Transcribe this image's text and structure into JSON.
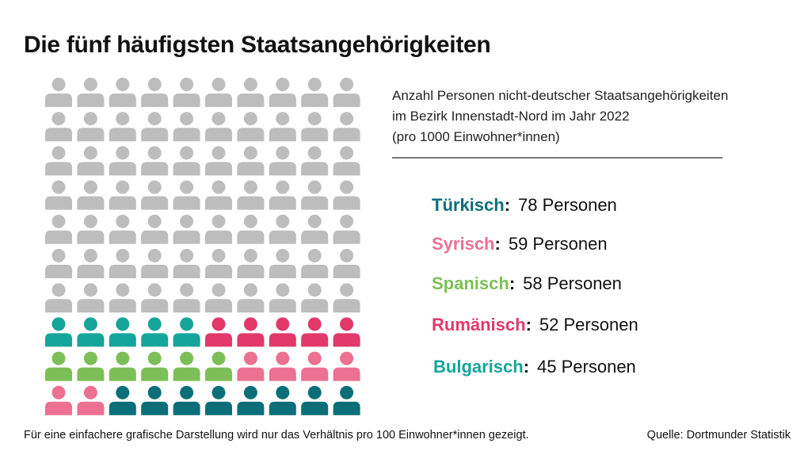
{
  "title": "Die fünf häufigsten Staatsangehörigkeiten",
  "subtitle_lines": [
    "Anzahl Personen nicht-deutscher Staatsangehörigkeiten",
    "im Bezirk Innenstadt-Nord im Jahr 2022",
    "(pro 1000 Einwohner*innen)"
  ],
  "footnote": "Für eine einfachere grafische Darstellung wird nur das Verhältnis pro 100 Einwohner*innen gezeigt.",
  "source": "Quelle: Dortmunder Statistik",
  "chart_data": {
    "type": "waffle",
    "grid": {
      "rows": 10,
      "cols": 10,
      "total": 100
    },
    "rest_color": "#bdbdbd",
    "fill_order": "from bottom-right, right to left, row by row upward",
    "categories": [
      {
        "name": "Türkisch",
        "label": "Türkisch",
        "value": 78,
        "value_text": "78 Personen",
        "icons": 8,
        "color": "#0b6e78"
      },
      {
        "name": "Syrisch",
        "label": "Syrisch",
        "value": 59,
        "value_text": "59 Personen",
        "icons": 6,
        "color": "#ec7092"
      },
      {
        "name": "Spanisch",
        "label": "Spanisch",
        "value": 58,
        "value_text": "58 Personen",
        "icons": 6,
        "color": "#7cbf56"
      },
      {
        "name": "Rumänisch",
        "label": "Rumänisch",
        "value": 52,
        "value_text": "52 Personen",
        "icons": 5,
        "color": "#e3386a"
      },
      {
        "name": "Bulgarisch",
        "label": "Bulgarisch",
        "value": 45,
        "value_text": "45 Personen",
        "icons": 5,
        "color": "#16a59b"
      }
    ],
    "remaining_icons": 70
  }
}
